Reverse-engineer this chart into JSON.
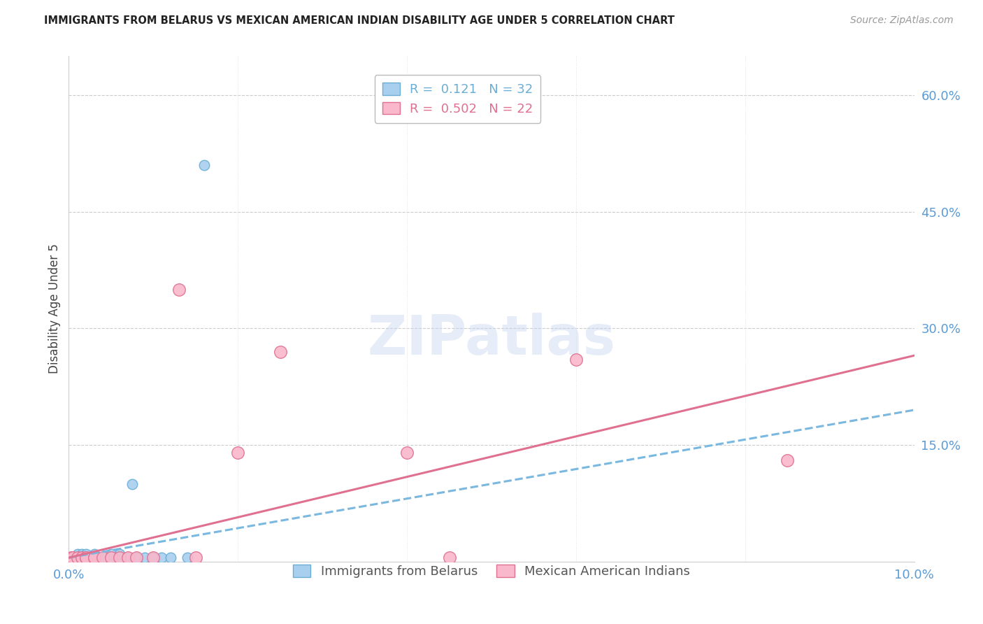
{
  "title": "IMMIGRANTS FROM BELARUS VS MEXICAN AMERICAN INDIAN DISABILITY AGE UNDER 5 CORRELATION CHART",
  "source": "Source: ZipAtlas.com",
  "ylabel": "Disability Age Under 5",
  "xlim": [
    0.0,
    0.1
  ],
  "ylim": [
    0.0,
    0.65
  ],
  "yticks_right": [
    0.15,
    0.3,
    0.45,
    0.6
  ],
  "ytick_labels_right": [
    "15.0%",
    "30.0%",
    "45.0%",
    "60.0%"
  ],
  "watermark": "ZIPatlas",
  "r1": 0.121,
  "n1": 32,
  "r2": 0.502,
  "n2": 22,
  "color_blue_fill": "#A8CFEE",
  "color_blue_edge": "#6aaed6",
  "color_pink_fill": "#F9B8CB",
  "color_pink_edge": "#e07090",
  "color_blue_line": "#7ab8e0",
  "color_pink_line": "#e07090",
  "color_axis_labels": "#5B9BD5",
  "blue_x": [
    0.0003,
    0.0005,
    0.0007,
    0.001,
    0.001,
    0.001,
    0.0012,
    0.0015,
    0.0015,
    0.002,
    0.002,
    0.002,
    0.0025,
    0.003,
    0.003,
    0.003,
    0.0035,
    0.004,
    0.004,
    0.005,
    0.005,
    0.006,
    0.006,
    0.007,
    0.0075,
    0.008,
    0.009,
    0.01,
    0.011,
    0.012,
    0.014,
    0.016
  ],
  "blue_y": [
    0.005,
    0.005,
    0.005,
    0.005,
    0.005,
    0.01,
    0.005,
    0.005,
    0.01,
    0.005,
    0.01,
    0.005,
    0.005,
    0.005,
    0.01,
    0.005,
    0.005,
    0.005,
    0.005,
    0.005,
    0.01,
    0.005,
    0.01,
    0.005,
    0.1,
    0.005,
    0.005,
    0.005,
    0.005,
    0.005,
    0.005,
    0.51
  ],
  "pink_x": [
    0.0003,
    0.0005,
    0.001,
    0.0015,
    0.002,
    0.002,
    0.003,
    0.003,
    0.004,
    0.005,
    0.006,
    0.007,
    0.008,
    0.01,
    0.013,
    0.015,
    0.02,
    0.025,
    0.04,
    0.045,
    0.06,
    0.085
  ],
  "pink_y": [
    0.005,
    0.005,
    0.005,
    0.005,
    0.005,
    0.005,
    0.005,
    0.005,
    0.005,
    0.005,
    0.005,
    0.005,
    0.005,
    0.005,
    0.35,
    0.005,
    0.14,
    0.27,
    0.14,
    0.005,
    0.26,
    0.13
  ],
  "blue_line_x": [
    0.0,
    0.1
  ],
  "blue_line_y": [
    0.005,
    0.195
  ],
  "pink_line_x": [
    0.0,
    0.1
  ],
  "pink_line_y": [
    0.005,
    0.265
  ]
}
